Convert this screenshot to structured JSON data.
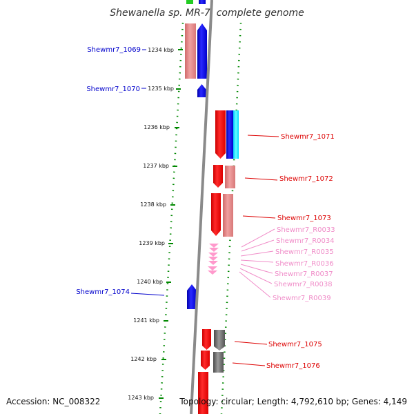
{
  "title": "Shewanella sp. MR-7, complete genome",
  "footer": {
    "accession": "Accession: NC_008322",
    "summary": "Topology: circular; Length: 4,792,610 bp; Genes: 4,149"
  },
  "ticks": [
    "1234 kbp",
    "1235 kbp",
    "1236 kbp",
    "1237 kbp",
    "1238 kbp",
    "1239 kbp",
    "1240 kbp",
    "1241 kbp",
    "1242 kbp",
    "1243 kbp"
  ],
  "genes_left": [
    {
      "name": "Shewmr7_1069",
      "color": "#0000cc"
    },
    {
      "name": "Shewmr7_1070",
      "color": "#0000cc"
    },
    {
      "name": "Shewmr7_1074",
      "color": "#0000cc"
    }
  ],
  "genes_right": [
    {
      "name": "Shewmr7_1071",
      "color": "#dd0000"
    },
    {
      "name": "Shewmr7_1072",
      "color": "#dd0000"
    },
    {
      "name": "Shewmr7_1073",
      "color": "#dd0000"
    },
    {
      "name": "Shewmr7_1075",
      "color": "#dd0000"
    },
    {
      "name": "Shewmr7_1076",
      "color": "#dd0000"
    }
  ],
  "rnas": [
    {
      "name": "Shewmr7_R0033",
      "color": "#f08cc8"
    },
    {
      "name": "Shewmr7_R0034",
      "color": "#f08cc8"
    },
    {
      "name": "Shewmr7_R0035",
      "color": "#f08cc8"
    },
    {
      "name": "Shewmr7_R0036",
      "color": "#f08cc8"
    },
    {
      "name": "Shewmr7_R0037",
      "color": "#f08cc8"
    },
    {
      "name": "Shewmr7_R0038",
      "color": "#f08cc8"
    },
    {
      "name": "Shewmr7_R0039",
      "color": "#f08cc8"
    }
  ],
  "colors": {
    "cds_forward": "#ff0000",
    "cds_reverse": "#0000ee",
    "cds_faded": "#e88080",
    "rna": "#ff99cc",
    "pseudo": "#666666",
    "cyan_track": "#00e5ff",
    "backbone": "#888888",
    "dots": "#008800"
  }
}
